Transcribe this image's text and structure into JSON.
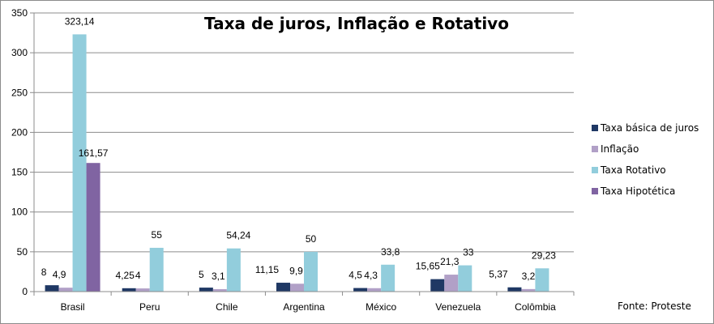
{
  "chart_data": {
    "type": "bar",
    "title": "Taxa de juros, Inflação e Rotativo",
    "xlabel": "",
    "ylabel": "",
    "ylim": [
      0,
      350
    ],
    "yticks": [
      0,
      50,
      100,
      150,
      200,
      250,
      300,
      350
    ],
    "grid": true,
    "legend_position": "right",
    "categories": [
      "Brasil",
      "Peru",
      "Chile",
      "Argentina",
      "México",
      "Venezuela",
      "Colômbia"
    ],
    "series": [
      {
        "name": "Taxa básica de juros",
        "color": "#1f3864",
        "values": [
          8,
          4.25,
          5,
          11.15,
          4.5,
          15.65,
          5.37
        ],
        "labels": [
          "8",
          "4,25",
          "5",
          "11,15",
          "4,5",
          "15,65",
          "5,37"
        ]
      },
      {
        "name": "Inflação",
        "color": "#b1a0c7",
        "values": [
          4.9,
          4,
          3.1,
          9.9,
          4.3,
          21.3,
          3.2
        ],
        "labels": [
          "4,9",
          "4",
          "3,1",
          "9,9",
          "4,3",
          "21,3",
          "3,2"
        ]
      },
      {
        "name": "Taxa Rotativo",
        "color": "#92cddc",
        "values": [
          323.14,
          55,
          54.24,
          50,
          33.8,
          33,
          29.23
        ],
        "labels": [
          "323,14",
          "55",
          "54,24",
          "50",
          "33,8",
          "33",
          "29,23"
        ]
      },
      {
        "name": "Taxa Hipotética",
        "color": "#8064a2",
        "values": [
          161.57,
          null,
          null,
          null,
          null,
          null,
          null
        ],
        "labels": [
          "161,57",
          "",
          "",
          "",
          "",
          "",
          ""
        ]
      }
    ],
    "source_note": "Fonte: Proteste"
  }
}
